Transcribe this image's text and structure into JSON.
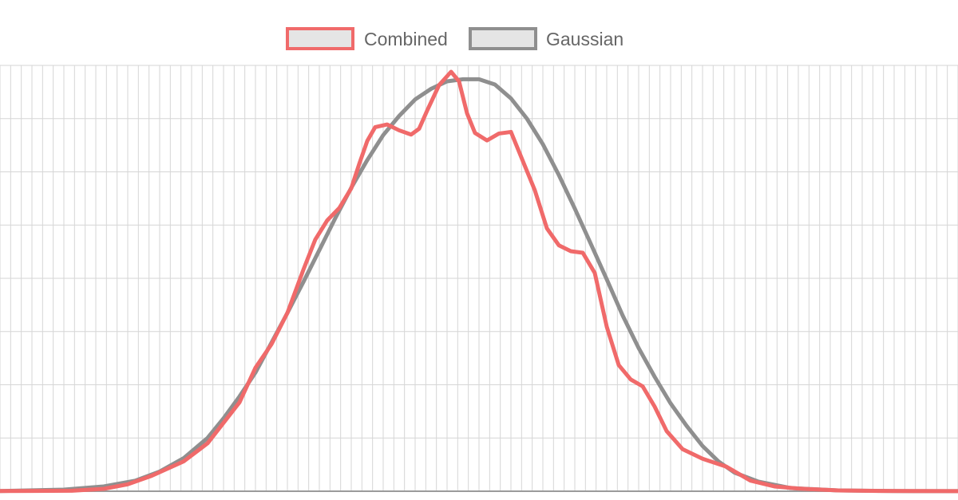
{
  "chart_data": {
    "type": "line",
    "title": "",
    "xlabel": "",
    "ylabel": "",
    "xlim": [
      -1,
      1
    ],
    "ylim": [
      0,
      0.08
    ],
    "grid": true,
    "legend": {
      "placement": "top-center",
      "entries": [
        "Combined",
        "Gaussian"
      ]
    },
    "series": [
      {
        "name": "Combined",
        "color": "#f06a6a",
        "points": [
          [
            -1.0,
            3e-05
          ],
          [
            -0.9333,
            5e-05
          ],
          [
            -0.85,
            0.0001
          ],
          [
            -0.7833,
            0.00045
          ],
          [
            -0.7333,
            0.0013
          ],
          [
            -0.6833,
            0.0029
          ],
          [
            -0.6167,
            0.0056
          ],
          [
            -0.5667,
            0.009
          ],
          [
            -0.5,
            0.0167
          ],
          [
            -0.4667,
            0.0232
          ],
          [
            -0.4333,
            0.0276
          ],
          [
            -0.4,
            0.0335
          ],
          [
            -0.3667,
            0.0416
          ],
          [
            -0.3417,
            0.0473
          ],
          [
            -0.3167,
            0.0509
          ],
          [
            -0.2917,
            0.0532
          ],
          [
            -0.2667,
            0.0569
          ],
          [
            -0.25,
            0.0615
          ],
          [
            -0.2333,
            0.0658
          ],
          [
            -0.2167,
            0.0684
          ],
          [
            -0.1917,
            0.0689
          ],
          [
            -0.1667,
            0.0678
          ],
          [
            -0.1417,
            0.067
          ],
          [
            -0.125,
            0.0681
          ],
          [
            -0.1083,
            0.0715
          ],
          [
            -0.0833,
            0.0763
          ],
          [
            -0.0583,
            0.0788
          ],
          [
            -0.0417,
            0.077
          ],
          [
            -0.025,
            0.071
          ],
          [
            -0.0083,
            0.0673
          ],
          [
            0.0167,
            0.0659
          ],
          [
            0.0417,
            0.0672
          ],
          [
            0.0667,
            0.0675
          ],
          [
            0.0917,
            0.062
          ],
          [
            0.1167,
            0.0565
          ],
          [
            0.1417,
            0.0494
          ],
          [
            0.1667,
            0.0462
          ],
          [
            0.1917,
            0.0451
          ],
          [
            0.2167,
            0.0448
          ],
          [
            0.2417,
            0.041
          ],
          [
            0.2667,
            0.0309
          ],
          [
            0.2917,
            0.0237
          ],
          [
            0.3167,
            0.021
          ],
          [
            0.3417,
            0.0197
          ],
          [
            0.3667,
            0.0159
          ],
          [
            0.3917,
            0.0113
          ],
          [
            0.425,
            0.0079
          ],
          [
            0.4667,
            0.0061
          ],
          [
            0.5167,
            0.0046
          ],
          [
            0.5667,
            0.002
          ],
          [
            0.6167,
            0.0009
          ],
          [
            0.6667,
            0.0005
          ],
          [
            0.75,
            0.00015
          ],
          [
            0.8333,
            5e-05
          ],
          [
            0.9167,
            3e-05
          ],
          [
            1.0,
            1e-05
          ]
        ]
      },
      {
        "name": "Gaussian",
        "color": "#8f8f8f",
        "points": [
          [
            -1.0,
            4e-05
          ],
          [
            -0.8667,
            0.0003
          ],
          [
            -0.7833,
            0.0009
          ],
          [
            -0.7167,
            0.002
          ],
          [
            -0.6667,
            0.0037
          ],
          [
            -0.6167,
            0.0062
          ],
          [
            -0.5667,
            0.01
          ],
          [
            -0.5333,
            0.0137
          ],
          [
            -0.5,
            0.0178
          ],
          [
            -0.4667,
            0.0223
          ],
          [
            -0.4333,
            0.0279
          ],
          [
            -0.4,
            0.0335
          ],
          [
            -0.3667,
            0.0393
          ],
          [
            -0.3333,
            0.0453
          ],
          [
            -0.3,
            0.0513
          ],
          [
            -0.2667,
            0.057
          ],
          [
            -0.2333,
            0.0622
          ],
          [
            -0.2,
            0.0669
          ],
          [
            -0.1667,
            0.0705
          ],
          [
            -0.1333,
            0.0736
          ],
          [
            -0.1,
            0.0756
          ],
          [
            -0.0667,
            0.077
          ],
          [
            -0.0333,
            0.0774
          ],
          [
            0.0,
            0.0774
          ],
          [
            0.0333,
            0.0764
          ],
          [
            0.0667,
            0.0738
          ],
          [
            0.1,
            0.07
          ],
          [
            0.1333,
            0.0652
          ],
          [
            0.1667,
            0.0594
          ],
          [
            0.2,
            0.0531
          ],
          [
            0.2333,
            0.0465
          ],
          [
            0.2667,
            0.0398
          ],
          [
            0.3,
            0.033
          ],
          [
            0.3333,
            0.0269
          ],
          [
            0.3667,
            0.0215
          ],
          [
            0.4,
            0.0165
          ],
          [
            0.4333,
            0.0123
          ],
          [
            0.4667,
            0.0085
          ],
          [
            0.5,
            0.0056
          ],
          [
            0.5333,
            0.0035
          ],
          [
            0.5833,
            0.0018
          ],
          [
            0.65,
            0.0006
          ],
          [
            0.75,
            0.00015
          ],
          [
            0.8667,
            3e-05
          ],
          [
            1.0,
            1e-05
          ]
        ]
      }
    ]
  }
}
